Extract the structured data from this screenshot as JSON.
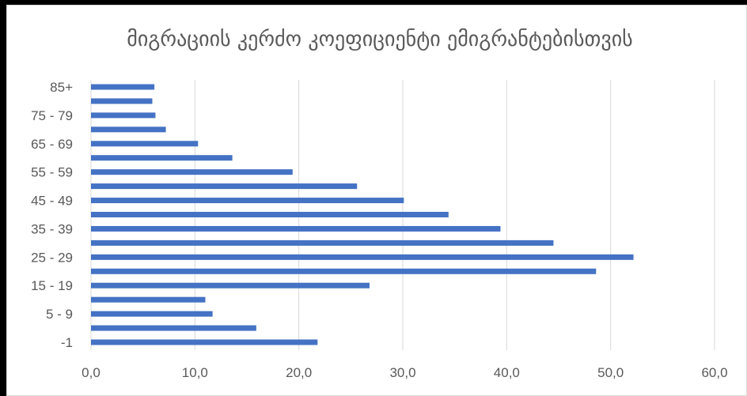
{
  "chart_data": {
    "type": "bar",
    "orientation": "horizontal",
    "title": "მიგრაციის კერძო კოეფიციენტი ემიგრანტებისთვის",
    "xlabel": "",
    "ylabel": "",
    "xlim": [
      0,
      60
    ],
    "x_ticks": [
      "0,0",
      "10,0",
      "20,0",
      "30,0",
      "40,0",
      "50,0",
      "60,0"
    ],
    "grid": true,
    "legend": "none",
    "bar_color": "#4472C4",
    "categories": [
      "-1",
      "",
      "5 - 9",
      "",
      "15 - 19",
      "",
      "25 - 29",
      "",
      "35 - 39",
      "",
      "45 - 49",
      "",
      "55 - 59",
      "",
      "65 - 69",
      "",
      "75 - 79",
      "",
      "85+"
    ],
    "values": [
      21.8,
      15.9,
      11.7,
      11.0,
      26.8,
      48.6,
      52.2,
      44.5,
      39.4,
      34.4,
      30.1,
      25.6,
      19.4,
      13.6,
      10.3,
      7.2,
      6.2,
      5.9,
      6.1
    ]
  }
}
